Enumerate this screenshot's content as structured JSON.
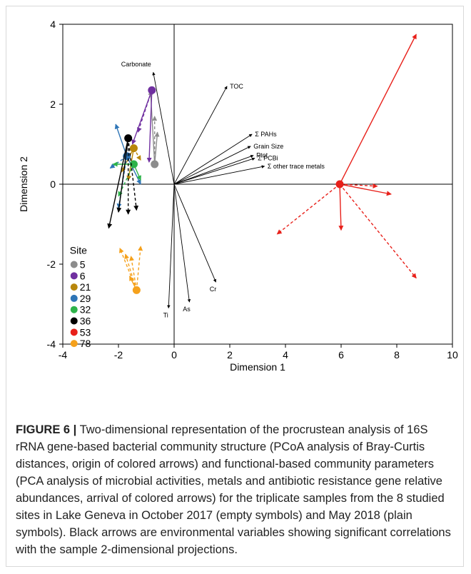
{
  "chart_data": {
    "type": "scatter",
    "xlabel": "Dimension 1",
    "ylabel": "Dimension 2",
    "xlim": [
      -4,
      10
    ],
    "ylim": [
      -4,
      4
    ],
    "xticks": [
      -4,
      -2,
      0,
      2,
      4,
      6,
      8,
      10
    ],
    "yticks": [
      -4,
      -2,
      0,
      2,
      4
    ],
    "legend": {
      "title": "Site",
      "placement": "lower-left",
      "entries": [
        {
          "label": "5",
          "color": "#8c8c8c"
        },
        {
          "label": "6",
          "color": "#7030a0"
        },
        {
          "label": "21",
          "color": "#b8860b"
        },
        {
          "label": "29",
          "color": "#2e75b6"
        },
        {
          "label": "32",
          "color": "#2db34a"
        },
        {
          "label": "36",
          "color": "#000000"
        },
        {
          "label": "53",
          "color": "#e8201a"
        },
        {
          "label": "78",
          "color": "#f5a11c"
        }
      ]
    },
    "environmental_vectors": [
      {
        "name": "Carbonate",
        "x": -0.75,
        "y": 2.8
      },
      {
        "name": "TOC",
        "x": 1.9,
        "y": 2.45
      },
      {
        "name": "Σ PAHs",
        "x": 2.8,
        "y": 1.25
      },
      {
        "name": "Grain Size",
        "x": 2.75,
        "y": 0.95
      },
      {
        "name": "Ptot",
        "x": 2.85,
        "y": 0.72
      },
      {
        "name": "Σ PCBi",
        "x": 2.9,
        "y": 0.65
      },
      {
        "name": "Σ other trace metals",
        "x": 3.25,
        "y": 0.45
      },
      {
        "name": "Cr",
        "x": 1.5,
        "y": -2.45
      },
      {
        "name": "As",
        "x": 0.55,
        "y": -2.95
      },
      {
        "name": "Ti",
        "x": -0.2,
        "y": -3.1
      }
    ],
    "site_arrows": [
      {
        "site": "5",
        "origin": [
          -0.7,
          0.5
        ],
        "ends": [
          [
            -0.85,
            2.35
          ],
          [
            -0.7,
            1.7
          ],
          [
            -0.6,
            1.3
          ]
        ]
      },
      {
        "site": "6",
        "origin": [
          -0.8,
          2.35
        ],
        "ends": [
          [
            -1.5,
            1.0
          ],
          [
            -1.3,
            1.3
          ],
          [
            -0.9,
            0.55
          ]
        ]
      },
      {
        "site": "21",
        "origin": [
          -1.45,
          0.9
        ],
        "ends": [
          [
            -1.9,
            0.3
          ],
          [
            -1.2,
            0.6
          ],
          [
            -1.65,
            0.1
          ]
        ]
      },
      {
        "site": "29",
        "origin": [
          -1.7,
          0.7
        ],
        "ends": [
          [
            -2.1,
            1.5
          ],
          [
            -2.3,
            0.4
          ],
          [
            -1.2,
            0.0
          ],
          [
            -2.0,
            -0.6
          ]
        ]
      },
      {
        "site": "32",
        "origin": [
          -1.45,
          0.5
        ],
        "ends": [
          [
            -2.2,
            0.5
          ],
          [
            -2.0,
            -0.3
          ],
          [
            -1.2,
            0.1
          ]
        ]
      },
      {
        "site": "36",
        "origin": [
          -1.65,
          1.15
        ],
        "ends": [
          [
            -2.35,
            -1.1
          ],
          [
            -1.65,
            -0.75
          ],
          [
            -2.0,
            -0.7
          ],
          [
            -1.35,
            -0.65
          ]
        ]
      },
      {
        "site": "53",
        "origin": [
          5.95,
          0.0
        ],
        "ends": [
          [
            8.7,
            3.75
          ],
          [
            3.7,
            -1.25
          ],
          [
            6.0,
            -1.15
          ],
          [
            8.7,
            -2.35
          ],
          [
            7.8,
            -0.25
          ],
          [
            7.3,
            -0.05
          ]
        ]
      },
      {
        "site": "78",
        "origin": [
          -1.35,
          -2.65
        ],
        "ends": [
          [
            -1.95,
            -1.6
          ],
          [
            -1.75,
            -1.75
          ],
          [
            -1.55,
            -1.8
          ],
          [
            -1.2,
            -1.55
          ],
          [
            -1.6,
            -2.3
          ]
        ]
      }
    ]
  },
  "caption": {
    "label": "FIGURE 6 |",
    "text": " Two-dimensional representation of the procrustean analysis of 16S rRNA gene-based bacterial community structure (PCoA analysis of Bray-Curtis distances, origin of colored arrows) and functional-based community parameters (PCA analysis of microbial activities, metals and antibiotic resistance gene relative abundances, arrival of colored arrows) for the triplicate samples from the 8 studied sites in Lake Geneva in October 2017 (empty symbols) and May 2018 (plain symbols). Black arrows are environmental variables showing significant correlations with the sample 2-dimensional projections."
  }
}
